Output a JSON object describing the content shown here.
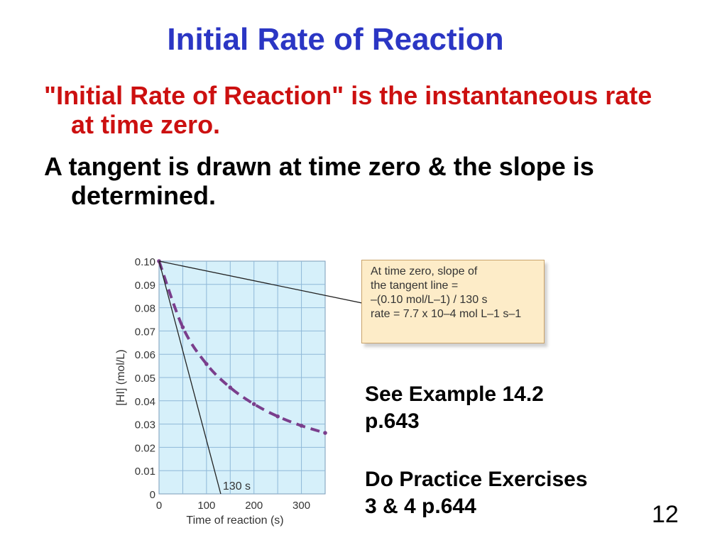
{
  "slide": {
    "title": "Initial Rate of Reaction",
    "bullet1": "\"Initial Rate of Reaction\" is the instantaneous rate at time zero.",
    "bullet2": "A tangent is drawn at time zero & the slope is determined.",
    "see_example_line1": "See Example 14.2",
    "see_example_line2": "p.643",
    "practice_line1": "Do Practice Exercises",
    "practice_line2": "3 & 4 p.644",
    "page_number": "12"
  },
  "annotation": {
    "line1": "At time zero, slope of",
    "line2": "the tangent line =",
    "line3": "–(0.10 mol/L–1) / 130 s",
    "line4": "rate = 7.7 x 10–4 mol L–1 s–1"
  },
  "colors": {
    "title": "#2b36c4",
    "bullet1": "#cc1010",
    "plot_background": "#d6f0fa",
    "grid": "#8fb8d8",
    "curve": "#7a3e8c",
    "annotation_background": "#fdecc8"
  },
  "chart_data": {
    "type": "line",
    "xlabel": "Time of reaction (s)",
    "ylabel": "[HI] (mol/L)",
    "xlim": [
      0,
      350
    ],
    "ylim": [
      0,
      0.1
    ],
    "x_ticks": [
      0,
      100,
      200,
      300
    ],
    "y_ticks": [
      0,
      0.01,
      0.02,
      0.03,
      0.04,
      0.05,
      0.06,
      0.07,
      0.08,
      0.09,
      0.1
    ],
    "y_tick_labels": [
      "0",
      "0.01",
      "0.02",
      "0.03",
      "0.04",
      "0.05",
      "0.06",
      "0.07",
      "0.08",
      "0.09",
      "0.10"
    ],
    "grid": true,
    "series": [
      {
        "style": "dashed",
        "x": [
          0,
          50,
          100,
          150,
          200,
          250,
          300,
          350
        ],
        "y": [
          0.1,
          0.0716,
          0.0558,
          0.0457,
          0.0386,
          0.0333,
          0.0293,
          0.0262
        ]
      }
    ],
    "tangent_line": {
      "x": [
        0,
        130
      ],
      "y": [
        0.1,
        0
      ]
    },
    "annotations": [
      {
        "text": "130 s",
        "x": 130,
        "y": 0
      }
    ]
  }
}
